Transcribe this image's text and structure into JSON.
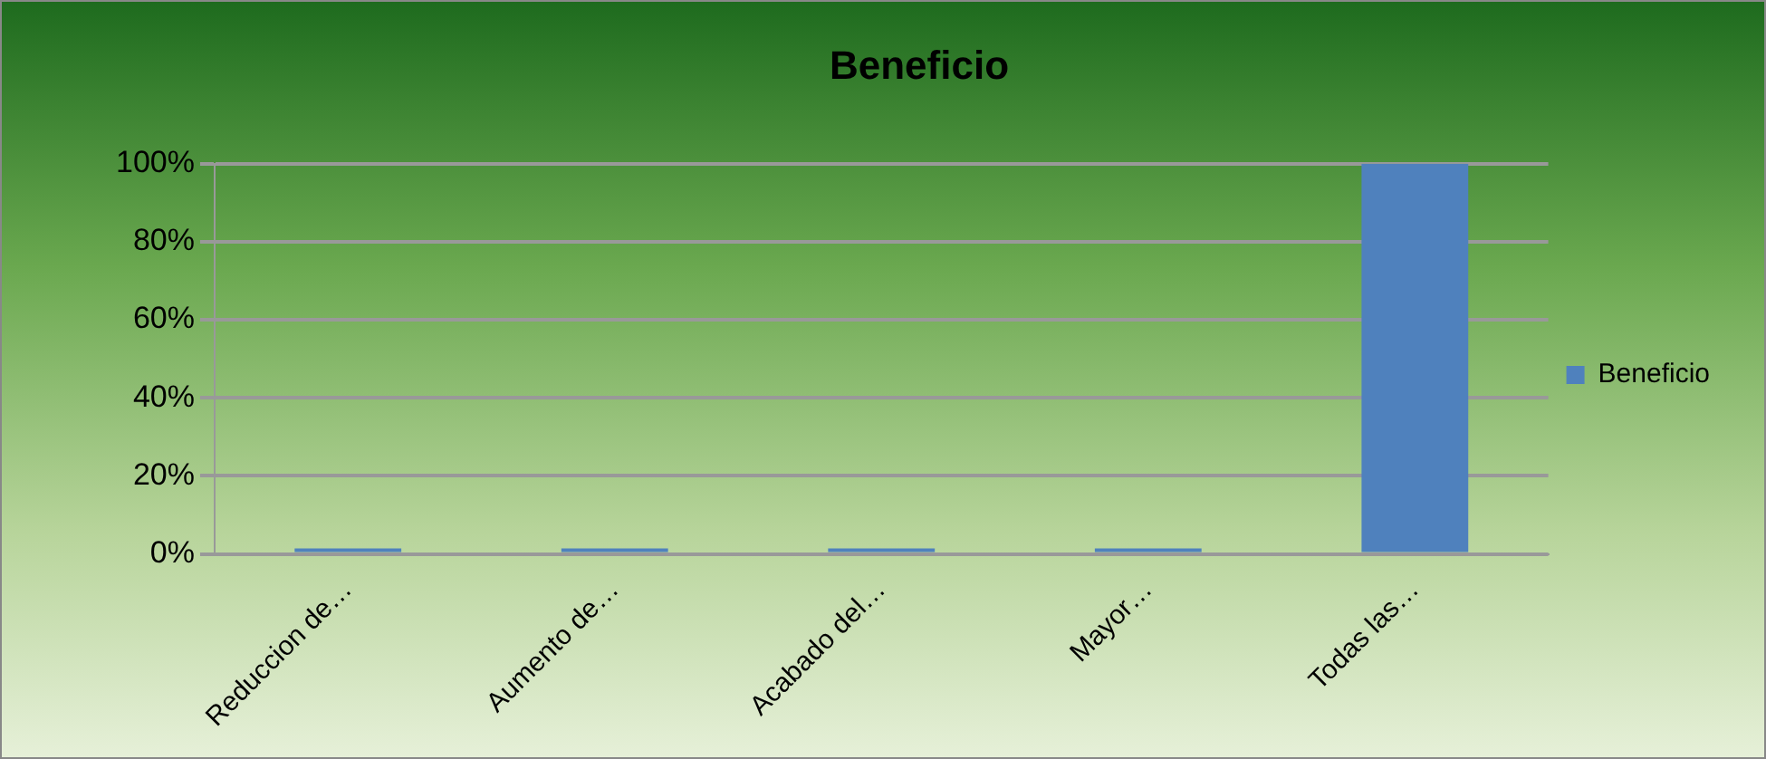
{
  "chart_data": {
    "type": "bar",
    "title": "Beneficio",
    "categories": [
      "Reduccion de…",
      "Aumento de…",
      "Acabado del…",
      "Mayor…",
      "Todas las…"
    ],
    "series": [
      {
        "name": "Beneficio",
        "color": "#4f81bd",
        "values": [
          0,
          0,
          0,
          0,
          100
        ]
      }
    ],
    "ylim": [
      0,
      100
    ],
    "yticks": [
      {
        "value": 0,
        "label": "0%"
      },
      {
        "value": 20,
        "label": "20%"
      },
      {
        "value": 40,
        "label": "40%"
      },
      {
        "value": 60,
        "label": "60%"
      },
      {
        "value": 80,
        "label": "80%"
      },
      {
        "value": 100,
        "label": "100%"
      }
    ],
    "grid": "y",
    "legend": "right"
  }
}
